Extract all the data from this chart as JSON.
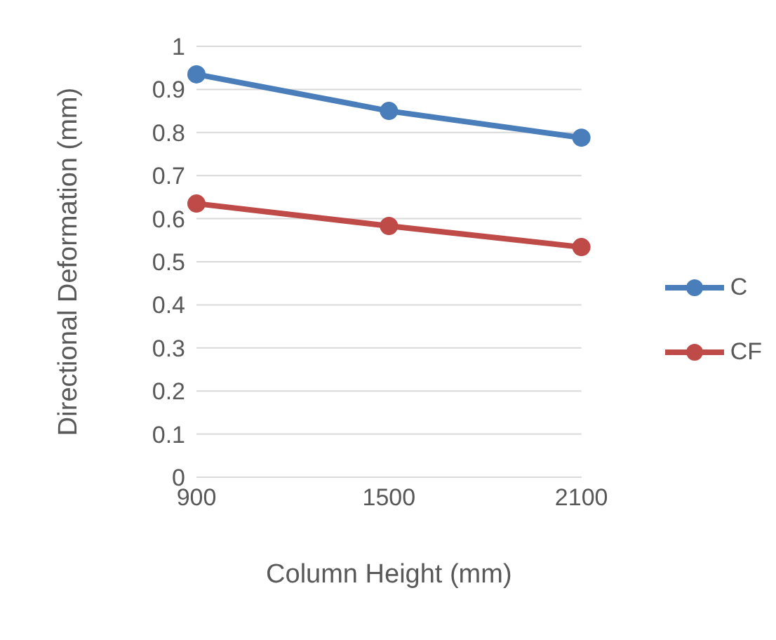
{
  "chart_data": {
    "type": "line",
    "xlabel": "Column Height (mm)",
    "ylabel": "Directional Deformation (mm)",
    "categories": [
      "900",
      "1500",
      "2100"
    ],
    "series": [
      {
        "name": "C",
        "color": "#4a7ebb",
        "values": [
          0.935,
          0.85,
          0.788
        ]
      },
      {
        "name": "CF",
        "color": "#be4b48",
        "values": [
          0.635,
          0.583,
          0.534
        ]
      }
    ],
    "ylim": [
      0,
      1
    ],
    "yticks": [
      0,
      0.1,
      0.2,
      0.3,
      0.4,
      0.5,
      0.6,
      0.7,
      0.8,
      0.9,
      1
    ],
    "grid": "y",
    "legend": "right",
    "marker": "circle",
    "line_style": "solid"
  }
}
